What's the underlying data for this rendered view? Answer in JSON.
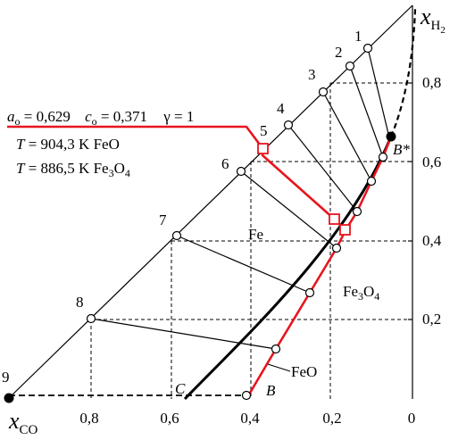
{
  "axes": {
    "x_label_main": "x",
    "x_label_sub": "CO",
    "y_label_main": "x",
    "y_label_sub": "H",
    "y_label_sub2": "2",
    "x_ticks": [
      "0,8",
      "0,6",
      "0,4",
      "0,2",
      "0"
    ],
    "y_ticks": [
      "0,8",
      "0,6",
      "0,4",
      "0,2"
    ]
  },
  "tie_line_numbers": [
    "1",
    "2",
    "3",
    "4",
    "5",
    "6",
    "7",
    "8",
    "9"
  ],
  "parameters": {
    "a_sym": "a",
    "a_sub": "o",
    "a_val": " = 0,629",
    "c_sym": "c",
    "c_sub": "o",
    "c_val": " = 0,371",
    "gamma": "γ = 1",
    "t_sym": "T",
    "t1_val": " = 904,3 K  FeO",
    "t2_val": " = 886,5 K  Fe",
    "t2_sub1": "3",
    "t2_mid": "O",
    "t2_sub2": "4"
  },
  "regions": {
    "fe": "Fe",
    "fe3o4_a": "Fe",
    "fe3o4_sub1": "3",
    "fe3o4_b": "O",
    "fe3o4_sub2": "4",
    "feo": "FeO"
  },
  "points": {
    "b": "B",
    "b_star": "B*",
    "c": "C"
  },
  "colors": {
    "line": "#000000",
    "highlight": "#e8141e"
  }
}
